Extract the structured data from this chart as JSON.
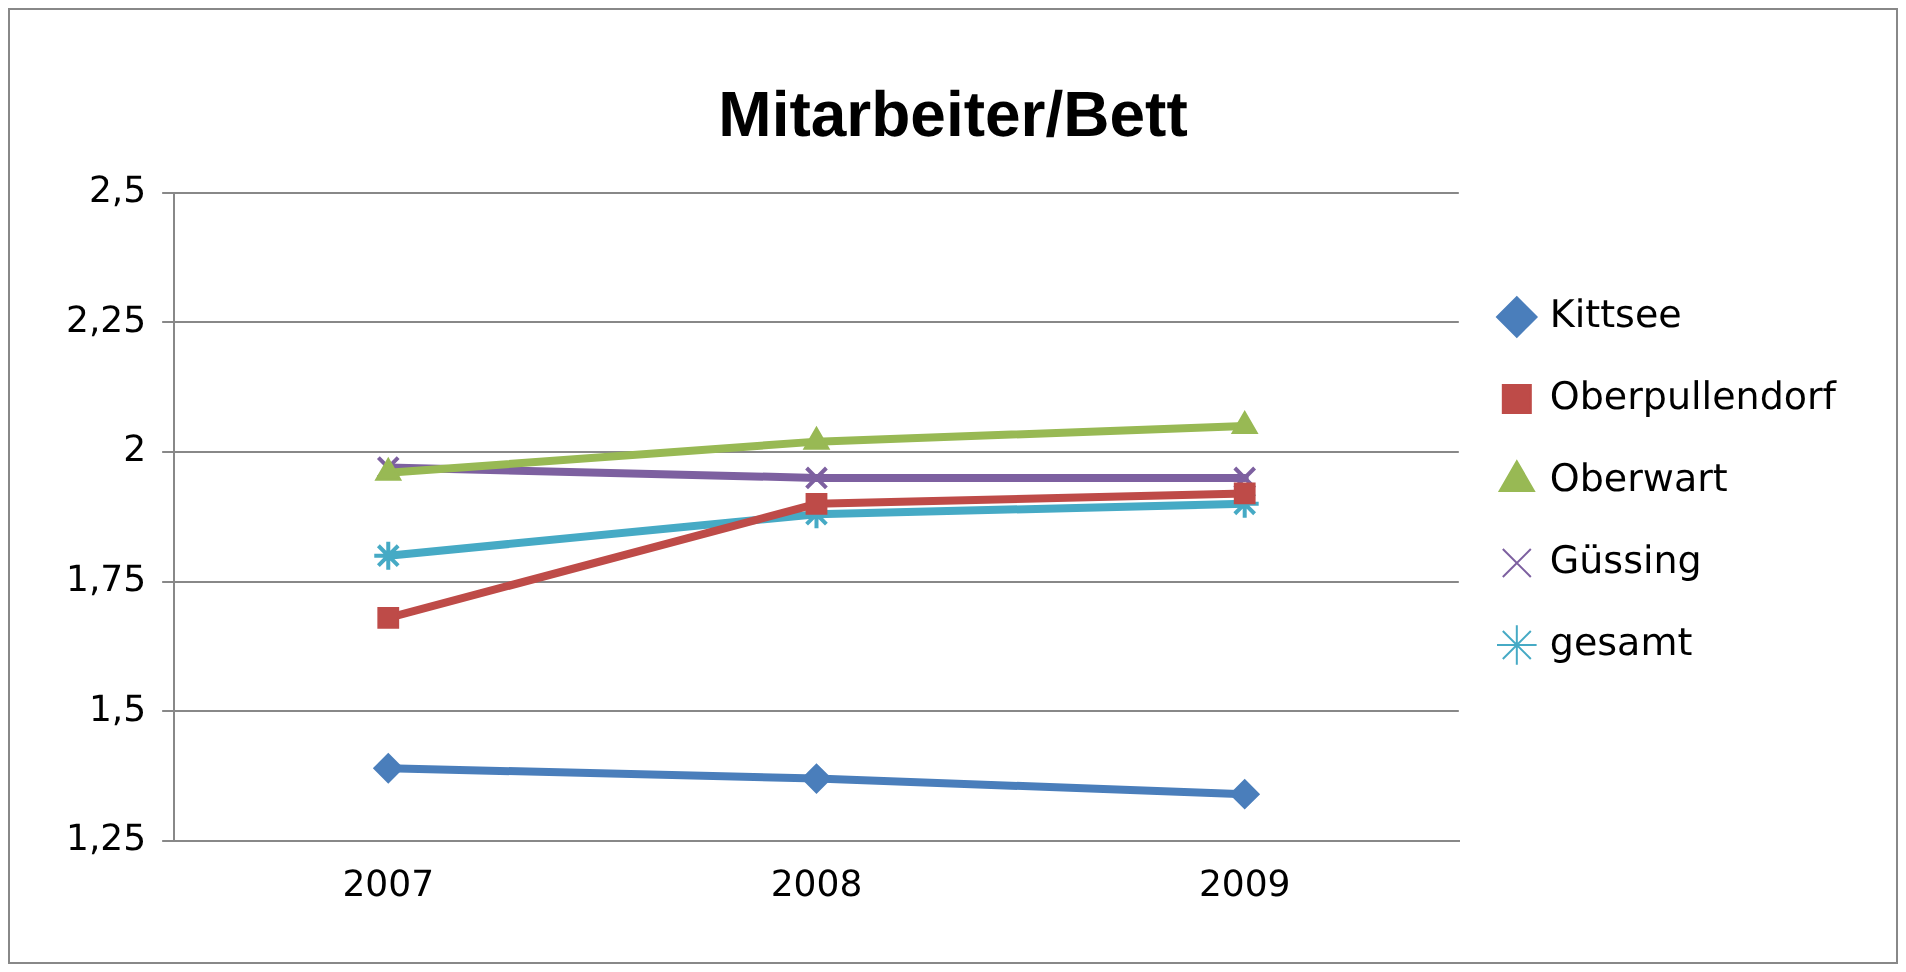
{
  "chart_data": {
    "type": "line",
    "title": "Mitarbeiter/Bett",
    "categories": [
      "2007",
      "2008",
      "2009"
    ],
    "series": [
      {
        "name": "Kittsee",
        "color": "#4a7ebb",
        "marker": "diamond",
        "values": [
          1.39,
          1.37,
          1.34
        ]
      },
      {
        "name": "Oberpullendorf",
        "color": "#be4b48",
        "marker": "square",
        "values": [
          1.68,
          1.9,
          1.92
        ]
      },
      {
        "name": "Oberwart",
        "color": "#98b954",
        "marker": "triangle",
        "values": [
          1.96,
          2.02,
          2.05
        ]
      },
      {
        "name": "Güssing",
        "color": "#7d60a0",
        "marker": "cross",
        "values": [
          1.97,
          1.95,
          1.95
        ]
      },
      {
        "name": "gesamt",
        "color": "#46aac5",
        "marker": "cross",
        "values": [
          1.8,
          1.88,
          1.9
        ]
      }
    ],
    "ylim": [
      1.25,
      2.5
    ],
    "yticks": [
      {
        "value": 1.25,
        "label": "1,25"
      },
      {
        "value": 1.5,
        "label": "1,5"
      },
      {
        "value": 1.75,
        "label": "1,75"
      },
      {
        "value": 2,
        "label": "2"
      },
      {
        "value": 2.25,
        "label": "2,25"
      },
      {
        "value": 2.5,
        "label": "2,5"
      }
    ],
    "grid": "y",
    "legend": "right",
    "line_style": "solid"
  }
}
